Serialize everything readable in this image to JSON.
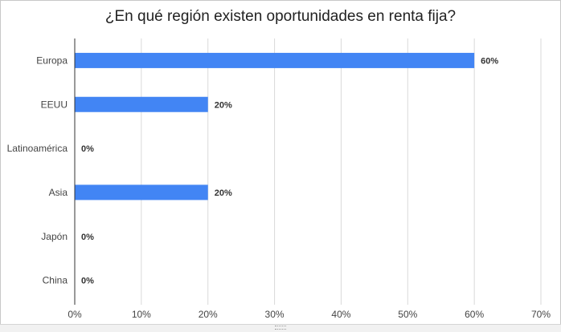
{
  "chart_data": {
    "type": "bar",
    "orientation": "horizontal",
    "title": "¿En qué región existen oportunidades en renta fija?",
    "categories": [
      "Europa",
      "EEUU",
      "Latinoamérica",
      "Asia",
      "Japón",
      "China"
    ],
    "values": [
      60,
      20,
      0,
      20,
      0,
      0
    ],
    "data_labels": [
      "60%",
      "20%",
      "0%",
      "20%",
      "0%",
      "0%"
    ],
    "xlim": [
      0,
      70
    ],
    "xticks": [
      0,
      10,
      20,
      30,
      40,
      50,
      60,
      70
    ],
    "xtick_labels": [
      "0%",
      "10%",
      "20%",
      "30%",
      "40%",
      "50%",
      "60%",
      "70%"
    ],
    "xlabel": "",
    "ylabel": "",
    "grid": true,
    "legend": "none",
    "bar_color": "#4285f4"
  }
}
